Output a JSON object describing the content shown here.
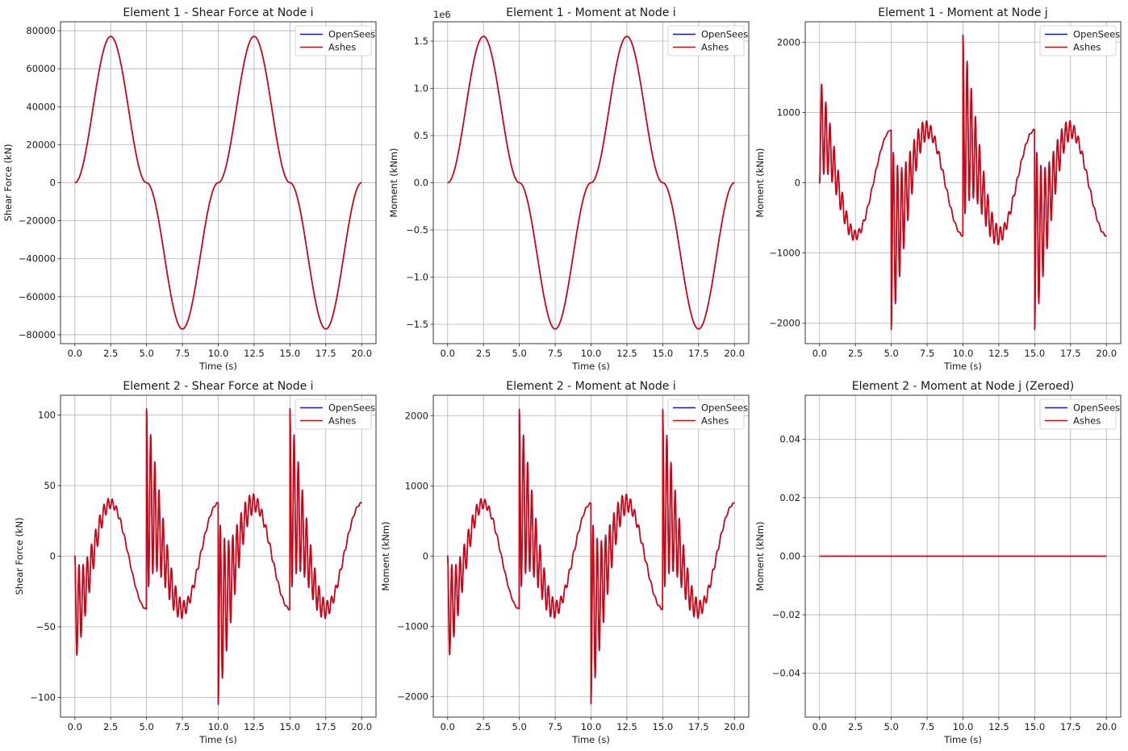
{
  "figure": {
    "legend_entries": [
      {
        "label": "OpenSees",
        "color": "#1010ff"
      },
      {
        "label": "Ashes",
        "color": "#dd0000"
      }
    ],
    "grid_color": "#b0b0b0"
  },
  "chart_data": [
    {
      "type": "line",
      "title": "Element 1 - Shear Force at Node i",
      "xlabel": "Time (s)",
      "ylabel": "Shear Force (kN)",
      "xlim": [
        -1,
        21
      ],
      "ylim": [
        -84700,
        84700
      ],
      "xticks": [
        0,
        2.5,
        5,
        7.5,
        10,
        12.5,
        15,
        17.5,
        20
      ],
      "xtick_labels": [
        "0.0",
        "2.5",
        "5.0",
        "7.5",
        "10.0",
        "12.5",
        "15.0",
        "17.5",
        "20.0"
      ],
      "yticks": [
        -80000,
        -60000,
        -40000,
        -20000,
        0,
        20000,
        40000,
        60000,
        80000
      ],
      "ytick_labels": [
        "−80000",
        "−60000",
        "−40000",
        "−20000",
        "0",
        "20000",
        "40000",
        "60000",
        "80000"
      ],
      "grid": true,
      "legend": "top-right",
      "series": [
        {
          "name": "OpenSees"
        },
        {
          "name": "Ashes"
        }
      ],
      "signal": {
        "kind": "signed_sine_squared",
        "amplitude": 77000,
        "period": 10,
        "peaks": [
          [
            2.5,
            77000
          ],
          [
            7.5,
            -77000
          ],
          [
            12.5,
            77000
          ],
          [
            17.5,
            -77000
          ]
        ]
      }
    },
    {
      "type": "line",
      "title": "Element 1 - Moment at Node i",
      "xlabel": "Time (s)",
      "ylabel": "Moment (kNm)",
      "y_offset_label": "1e6",
      "xlim": [
        -1,
        21
      ],
      "ylim": [
        -1705000,
        1705000
      ],
      "xticks": [
        0,
        2.5,
        5,
        7.5,
        10,
        12.5,
        15,
        17.5,
        20
      ],
      "xtick_labels": [
        "0.0",
        "2.5",
        "5.0",
        "7.5",
        "10.0",
        "12.5",
        "15.0",
        "17.5",
        "20.0"
      ],
      "yticks": [
        -1500000,
        -1000000,
        -500000,
        0,
        500000,
        1000000,
        1500000
      ],
      "ytick_labels": [
        "−1.5",
        "−1.0",
        "−0.5",
        "0.0",
        "0.5",
        "1.0",
        "1.5"
      ],
      "grid": true,
      "legend": "top-right",
      "series": [
        {
          "name": "OpenSees"
        },
        {
          "name": "Ashes"
        }
      ],
      "signal": {
        "kind": "signed_sine_squared",
        "amplitude": 1550000,
        "period": 10,
        "peaks": [
          [
            2.5,
            1550000
          ],
          [
            7.5,
            -1550000
          ],
          [
            12.5,
            1550000
          ],
          [
            17.5,
            -1550000
          ]
        ]
      }
    },
    {
      "type": "line",
      "title": "Element 1 - Moment at Node j",
      "xlabel": "Time (s)",
      "ylabel": "Moment (kNm)",
      "xlim": [
        -1,
        21
      ],
      "ylim": [
        -2290,
        2290
      ],
      "xticks": [
        0,
        2.5,
        5,
        7.5,
        10,
        12.5,
        15,
        17.5,
        20
      ],
      "xtick_labels": [
        "0.0",
        "2.5",
        "5.0",
        "7.5",
        "10.0",
        "12.5",
        "15.0",
        "17.5",
        "20.0"
      ],
      "yticks": [
        -2000,
        -1000,
        0,
        1000,
        2000
      ],
      "ytick_labels": [
        "−2000",
        "−1000",
        "0",
        "1000",
        "2000"
      ],
      "grid": true,
      "legend": "top-right",
      "series": [
        {
          "name": "OpenSees"
        },
        {
          "name": "Ashes"
        }
      ],
      "signal": {
        "kind": "damped_impulse",
        "scale": 1,
        "mean_amplitude": 750,
        "freq_hz": 3.45,
        "damping": 0.94,
        "events": [
          [
            0,
            0
          ],
          [
            5,
            -2070
          ],
          [
            10,
            2080
          ],
          [
            15,
            -2070
          ]
        ],
        "end_value": -750
      }
    },
    {
      "type": "line",
      "title": "Element 2 - Shear Force at Node i",
      "xlabel": "Time (s)",
      "ylabel": "Shear Force (kN)",
      "xlim": [
        -1,
        21
      ],
      "ylim": [
        -114,
        114
      ],
      "xticks": [
        0,
        2.5,
        5,
        7.5,
        10,
        12.5,
        15,
        17.5,
        20
      ],
      "xtick_labels": [
        "0.0",
        "2.5",
        "5.0",
        "7.5",
        "10.0",
        "12.5",
        "15.0",
        "17.5",
        "20.0"
      ],
      "yticks": [
        -100,
        -50,
        0,
        50,
        100
      ],
      "ytick_labels": [
        "−100",
        "−50",
        "0",
        "50",
        "100"
      ],
      "grid": true,
      "legend": "top-right",
      "series": [
        {
          "name": "OpenSees"
        },
        {
          "name": "Ashes"
        }
      ],
      "signal": {
        "kind": "damped_impulse",
        "scale": -0.05,
        "mean_amplitude": 750,
        "freq_hz": 3.45,
        "damping": 0.94,
        "events": [
          [
            0,
            0
          ],
          [
            5,
            -2070
          ],
          [
            10,
            2080
          ],
          [
            15,
            -2070
          ]
        ],
        "end_value": 37.5
      }
    },
    {
      "type": "line",
      "title": "Element 2 - Moment at Node i",
      "xlabel": "Time (s)",
      "ylabel": "Moment (kNm)",
      "xlim": [
        -1,
        21
      ],
      "ylim": [
        -2290,
        2290
      ],
      "xticks": [
        0,
        2.5,
        5,
        7.5,
        10,
        12.5,
        15,
        17.5,
        20
      ],
      "xtick_labels": [
        "0.0",
        "2.5",
        "5.0",
        "7.5",
        "10.0",
        "12.5",
        "15.0",
        "17.5",
        "20.0"
      ],
      "yticks": [
        -2000,
        -1000,
        0,
        1000,
        2000
      ],
      "ytick_labels": [
        "−2000",
        "−1000",
        "0",
        "1000",
        "2000"
      ],
      "grid": true,
      "legend": "top-right",
      "series": [
        {
          "name": "OpenSees"
        },
        {
          "name": "Ashes"
        }
      ],
      "signal": {
        "kind": "damped_impulse",
        "scale": -1,
        "mean_amplitude": 750,
        "freq_hz": 3.45,
        "damping": 0.94,
        "events": [
          [
            0,
            0
          ],
          [
            5,
            -2070
          ],
          [
            10,
            2080
          ],
          [
            15,
            -2070
          ]
        ],
        "end_value": 750
      }
    },
    {
      "type": "line",
      "title": "Element 2 - Moment at Node j (Zeroed)",
      "xlabel": "Time (s)",
      "ylabel": "Moment (kNm)",
      "xlim": [
        -1,
        21
      ],
      "ylim": [
        -0.055,
        0.055
      ],
      "xticks": [
        0,
        2.5,
        5,
        7.5,
        10,
        12.5,
        15,
        17.5,
        20
      ],
      "xtick_labels": [
        "0.0",
        "2.5",
        "5.0",
        "7.5",
        "10.0",
        "12.5",
        "15.0",
        "17.5",
        "20.0"
      ],
      "yticks": [
        -0.04,
        -0.02,
        0,
        0.02,
        0.04
      ],
      "ytick_labels": [
        "−0.04",
        "−0.02",
        "0.00",
        "0.02",
        "0.04"
      ],
      "grid": true,
      "legend": "top-right",
      "series": [
        {
          "name": "OpenSees"
        },
        {
          "name": "Ashes"
        }
      ],
      "signal": {
        "kind": "zero",
        "value": 0
      }
    }
  ]
}
